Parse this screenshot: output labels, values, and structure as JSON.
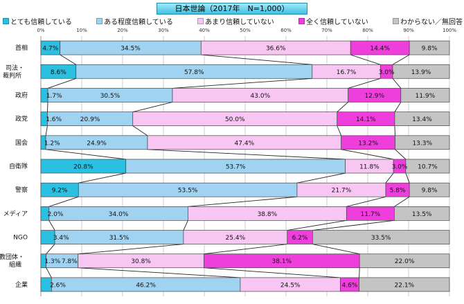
{
  "chart_data": {
    "type": "bar",
    "orientation": "horizontal-stacked-100",
    "title": "日本世論（2017年　N=1,000）",
    "xlim": [
      0,
      100
    ],
    "x_ticks": [
      "0%",
      "10%",
      "20%",
      "30%",
      "40%",
      "50%",
      "60%",
      "70%",
      "80%",
      "90%",
      "100%"
    ],
    "legend_position": "top",
    "categories": [
      "首相",
      "司法・\n裁判所",
      "政府",
      "政党",
      "国会",
      "自衛隊",
      "警察",
      "メディア",
      "NGO",
      "宗教団体・\n組織",
      "企業"
    ],
    "series": [
      {
        "name": "とても信頼している",
        "color": "#2bbfe1",
        "values": [
          4.7,
          8.6,
          1.7,
          1.6,
          1.2,
          20.8,
          9.2,
          2.0,
          3.4,
          1.3,
          2.6
        ],
        "labels": [
          "4.7%",
          "8.6%",
          "1.7%",
          "1.6%",
          "1.2%",
          "20.8%",
          "9.2%",
          "2.0%",
          "3.4%",
          "1.3%",
          "2.6%"
        ]
      },
      {
        "name": "ある程度信頼している",
        "color": "#9fd3f1",
        "values": [
          34.5,
          57.8,
          30.5,
          20.9,
          24.9,
          53.7,
          53.5,
          34.0,
          31.5,
          7.8,
          46.2
        ],
        "labels": [
          "34.5%",
          "57.8%",
          "30.5%",
          "20.9%",
          "24.9%",
          "53.7%",
          "53.5%",
          "34.0%",
          "31.5%",
          "7.8%",
          "46.2%"
        ]
      },
      {
        "name": "あまり信頼していない",
        "color": "#f8c6f2",
        "values": [
          36.6,
          16.7,
          43.0,
          50.0,
          47.4,
          11.8,
          21.7,
          38.8,
          25.4,
          30.8,
          24.5
        ],
        "labels": [
          "36.6%",
          "16.7%",
          "43.0%",
          "50.0%",
          "47.4%",
          "11.8%",
          "21.7%",
          "38.8%",
          "25.4%",
          "30.8%",
          "24.5%"
        ]
      },
      {
        "name": "全く信頼していない",
        "color": "#ee3fdd",
        "values": [
          14.4,
          3.0,
          12.9,
          14.1,
          13.2,
          3.0,
          5.8,
          11.7,
          6.2,
          38.1,
          4.6
        ],
        "labels": [
          "14.4%",
          "3.0%",
          "12.9%",
          "14.1%",
          "13.2%",
          "3.0%",
          "5.8%",
          "11.7%",
          "6.2%",
          "38.1%",
          "4.6%"
        ]
      },
      {
        "name": "わからない／無回答",
        "color": "#c4c4c4",
        "values": [
          9.8,
          13.9,
          11.9,
          13.4,
          13.3,
          10.7,
          9.8,
          13.5,
          33.5,
          22.0,
          22.1
        ],
        "labels": [
          "9.8%",
          "13.9%",
          "11.9%",
          "13.4%",
          "13.3%",
          "10.7%",
          "9.8%",
          "13.5%",
          "33.5%",
          "22.0%",
          "22.1%"
        ]
      }
    ],
    "connector_lines": true,
    "grid": true
  }
}
